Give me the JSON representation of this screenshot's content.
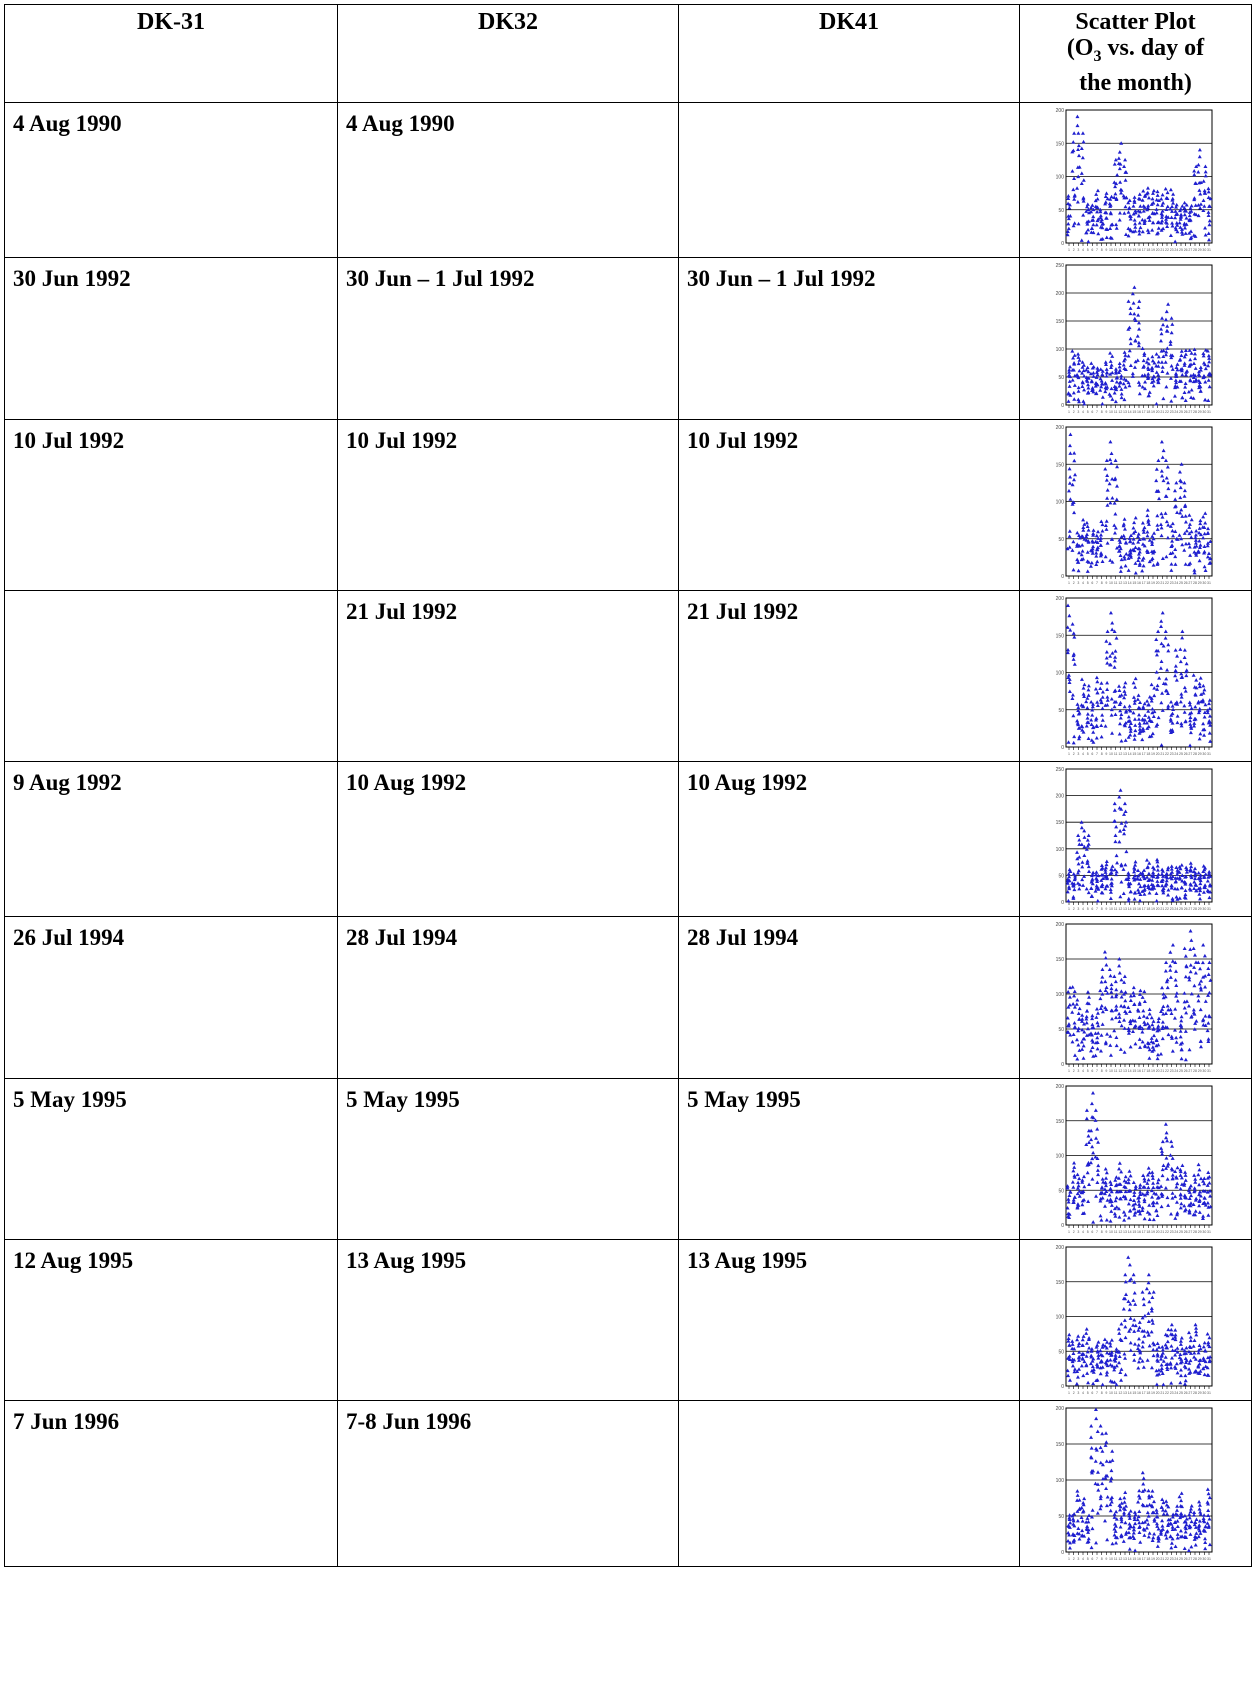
{
  "headers": [
    "DK-31",
    "DK32",
    "DK41",
    "Scatter Plot"
  ],
  "scatter_header": {
    "line1": "Scatter Plot",
    "o": "(O",
    "sub": "3",
    "rest": " vs. day of",
    "line3": "the month)"
  },
  "rows": [
    {
      "dk31": "4 Aug 1990",
      "dk32": "4 Aug 1990",
      "dk41": ""
    },
    {
      "dk31": "30 Jun 1992",
      "dk32": "30 Jun – 1 Jul 1992",
      "dk41": "30 Jun – 1 Jul 1992"
    },
    {
      "dk31": "10 Jul 1992",
      "dk32": "10 Jul 1992",
      "dk41": "10 Jul 1992"
    },
    {
      "dk31": "",
      "dk32": "21 Jul 1992",
      "dk41": "21 Jul 1992"
    },
    {
      "dk31": "9 Aug 1992",
      "dk32": "10 Aug 1992",
      "dk41": "10 Aug 1992"
    },
    {
      "dk31": "26 Jul 1994",
      "dk32": "28 Jul 1994",
      "dk41": "28 Jul 1994"
    },
    {
      "dk31": "5 May 1995",
      "dk32": "5 May 1995",
      "dk41": "5 May 1995"
    },
    {
      "dk31": "12 Aug 1995",
      "dk32": "13 Aug 1995",
      "dk41": "13 Aug 1995"
    },
    {
      "dk31": "7 Jun 1996",
      "dk32": "7-8 Jun 1996",
      "dk41": ""
    }
  ],
  "chart_data": [
    {
      "type": "scatter",
      "ylim": [
        0,
        200
      ],
      "yticks": [
        0,
        50,
        100,
        150,
        200
      ],
      "xlim": [
        1,
        31
      ],
      "color": "#1f1fcf",
      "seed": 11,
      "base": 55,
      "spread": 45,
      "peaks": [
        [
          3,
          190
        ],
        [
          12,
          150
        ],
        [
          29,
          140
        ]
      ]
    },
    {
      "type": "scatter",
      "ylim": [
        0,
        250
      ],
      "yticks": [
        0,
        50,
        100,
        150,
        200,
        250
      ],
      "xlim": [
        1,
        31
      ],
      "color": "#1f1fcf",
      "seed": 23,
      "base": 75,
      "spread": 40,
      "peaks": [
        [
          15,
          210
        ],
        [
          22,
          180
        ]
      ]
    },
    {
      "type": "scatter",
      "ylim": [
        0,
        200
      ],
      "yticks": [
        0,
        50,
        100,
        150,
        200
      ],
      "xlim": [
        1,
        31
      ],
      "color": "#1f1fcf",
      "seed": 37,
      "base": 65,
      "spread": 45,
      "peaks": [
        [
          1,
          190
        ],
        [
          10,
          180
        ],
        [
          21,
          180
        ],
        [
          25,
          150
        ]
      ]
    },
    {
      "type": "scatter",
      "ylim": [
        0,
        200
      ],
      "yticks": [
        0,
        50,
        100,
        150,
        200
      ],
      "xlim": [
        1,
        31
      ],
      "color": "#1f1fcf",
      "seed": 41,
      "base": 65,
      "spread": 45,
      "peaks": [
        [
          1,
          190
        ],
        [
          10,
          180
        ],
        [
          21,
          180
        ],
        [
          25,
          155
        ]
      ]
    },
    {
      "type": "scatter",
      "ylim": [
        0,
        250
      ],
      "yticks": [
        0,
        50,
        100,
        150,
        200,
        250
      ],
      "xlim": [
        1,
        31
      ],
      "color": "#1f1fcf",
      "seed": 53,
      "base": 60,
      "spread": 30,
      "peaks": [
        [
          4,
          150
        ],
        [
          12,
          210
        ]
      ]
    },
    {
      "type": "scatter",
      "ylim": [
        0,
        200
      ],
      "yticks": [
        0,
        50,
        100,
        150,
        200
      ],
      "xlim": [
        1,
        31
      ],
      "color": "#1f1fcf",
      "seed": 67,
      "base": 80,
      "spread": 50,
      "peaks": [
        [
          9,
          160
        ],
        [
          12,
          150
        ],
        [
          23,
          170
        ],
        [
          27,
          190
        ],
        [
          30,
          170
        ]
      ]
    },
    {
      "type": "scatter",
      "ylim": [
        0,
        200
      ],
      "yticks": [
        0,
        50,
        100,
        150,
        200
      ],
      "xlim": [
        1,
        31
      ],
      "color": "#1f1fcf",
      "seed": 71,
      "base": 65,
      "spread": 35,
      "peaks": [
        [
          6,
          190
        ],
        [
          22,
          145
        ]
      ]
    },
    {
      "type": "scatter",
      "ylim": [
        0,
        200
      ],
      "yticks": [
        0,
        50,
        100,
        150,
        200
      ],
      "xlim": [
        1,
        31
      ],
      "color": "#1f1fcf",
      "seed": 83,
      "base": 65,
      "spread": 40,
      "peaks": [
        [
          14,
          185
        ],
        [
          18,
          160
        ]
      ]
    },
    {
      "type": "scatter",
      "ylim": [
        0,
        200
      ],
      "yticks": [
        0,
        50,
        100,
        150,
        200
      ],
      "xlim": [
        1,
        31
      ],
      "color": "#1f1fcf",
      "seed": 97,
      "base": 60,
      "spread": 40,
      "peaks": [
        [
          7,
          200
        ],
        [
          9,
          165
        ],
        [
          17,
          110
        ]
      ]
    }
  ]
}
